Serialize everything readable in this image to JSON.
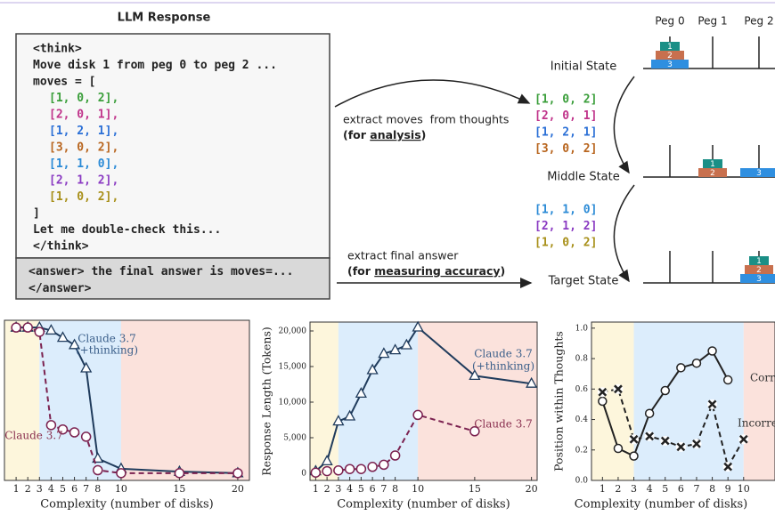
{
  "diagram": {
    "title": "LLM Response",
    "think_lines": [
      {
        "text": "<think>",
        "bold": true
      },
      {
        "text": "Move disk 1 from peg 0 to peg 2 ..."
      },
      {
        "text": "moves = ["
      },
      {
        "text": "[1, 0, 2],",
        "indent": 1,
        "color": "#3a9e3a"
      },
      {
        "text": "[2, 0, 1],",
        "indent": 1,
        "color": "#c0338a"
      },
      {
        "text": "[1, 2, 1],",
        "indent": 1,
        "color": "#2a6fd6"
      },
      {
        "text": "[3, 0, 2],",
        "indent": 1,
        "color": "#b8651e"
      },
      {
        "text": "[1, 1, 0],",
        "indent": 1,
        "color": "#2a8ad6"
      },
      {
        "text": "[2, 1, 2],",
        "indent": 1,
        "color": "#8a3ac2"
      },
      {
        "text": "[1, 0, 2],",
        "indent": 1,
        "color": "#a8901a"
      },
      {
        "text": "]"
      },
      {
        "text": "Let me double-check this..."
      },
      {
        "text": "</think>",
        "bold": true
      }
    ],
    "answer_lines": [
      {
        "tag": "<answer>",
        "text": " the final answer is moves=..."
      },
      {
        "tag": "</answer>"
      }
    ],
    "arrows": [
      {
        "line1": "extract moves  from thoughts",
        "pre": "(for ",
        "emph": "analysis",
        "post": ")"
      },
      {
        "line1": "extract final answer",
        "pre": "(for ",
        "emph": "measuring accuracy",
        "post": ")"
      }
    ],
    "peg_names": [
      "Peg 0",
      "Peg 1",
      "Peg 2"
    ],
    "disk_colors": {
      "1": "#1a8f86",
      "2": "#c8704e",
      "3": "#2f8fe0"
    },
    "states": [
      {
        "name": "Initial State",
        "pegs": [
          [
            "3",
            "2",
            "1"
          ],
          [],
          []
        ]
      },
      {
        "name": "Middle State",
        "pegs": [
          [],
          [
            "2",
            "1"
          ],
          [
            "3"
          ]
        ]
      },
      {
        "name": "Target State",
        "pegs": [
          [],
          [],
          [
            "3",
            "2",
            "1"
          ]
        ]
      }
    ],
    "move_groups": [
      [
        {
          "text": "[1, 0, 2]",
          "color": "#3a9e3a"
        },
        {
          "text": "[2, 0, 1]",
          "color": "#c0338a"
        },
        {
          "text": "[1, 2, 1]",
          "color": "#2a6fd6"
        },
        {
          "text": "[3, 0, 2]",
          "color": "#b8651e"
        }
      ],
      [
        {
          "text": "[1, 1, 0]",
          "color": "#2a8ad6"
        },
        {
          "text": "[2, 1, 2]",
          "color": "#8a3ac2"
        },
        {
          "text": "[1, 0, 2]",
          "color": "#a8901a"
        }
      ]
    ]
  },
  "chart_data": [
    {
      "type": "line",
      "xlabel": "Complexity (number of disks)",
      "xlim": [
        0,
        21
      ],
      "xticks": [
        1,
        2,
        3,
        4,
        5,
        6,
        7,
        8,
        10,
        15,
        20
      ],
      "ylim": [
        -5,
        105
      ],
      "regions": [
        {
          "from": 0,
          "to": 3,
          "color": "#fdf6dc"
        },
        {
          "from": 3,
          "to": 10,
          "color": "#dcedfc"
        },
        {
          "from": 10,
          "to": 21,
          "color": "#fbe2dc"
        }
      ],
      "series": [
        {
          "label": [
            "Claude 3.7",
            "(+thinking)"
          ],
          "color": "#1f3b5c",
          "marker": "triangle",
          "dash": false,
          "x": [
            1,
            2,
            3,
            4,
            5,
            6,
            7,
            8,
            10,
            15,
            20
          ],
          "values": [
            100,
            100,
            100,
            98,
            93,
            88,
            72,
            10,
            3,
            1,
            0
          ]
        },
        {
          "label": [
            "Claude 3.7"
          ],
          "color": "#7b2250",
          "marker": "circle",
          "dash": true,
          "x": [
            1,
            2,
            3,
            4,
            5,
            6,
            7,
            8,
            10,
            15,
            20
          ],
          "values": [
            100,
            100,
            97,
            33,
            30,
            28,
            25,
            2,
            0,
            0,
            0
          ]
        }
      ]
    },
    {
      "type": "line",
      "xlabel": "Complexity (number of disks)",
      "ylabel": "Response Length (Tokens)",
      "xlim": [
        0.5,
        20.5
      ],
      "xticks": [
        1,
        2,
        3,
        4,
        5,
        6,
        7,
        8,
        10,
        15,
        20
      ],
      "ylim": [
        -1000,
        21250
      ],
      "yticks": [
        0,
        {
          "value": 5000,
          "label": "5,000"
        },
        {
          "value": 10000,
          "label": "10,000"
        },
        {
          "value": 15000,
          "label": "15,000"
        },
        {
          "value": 20000,
          "label": "20,000"
        }
      ],
      "regions": [
        {
          "from": 0.5,
          "to": 3,
          "color": "#fdf6dc"
        },
        {
          "from": 3,
          "to": 10,
          "color": "#dcedfc"
        },
        {
          "from": 10,
          "to": 20.5,
          "color": "#fbe2dc"
        }
      ],
      "series": [
        {
          "label": [
            "Claude 3.7",
            "(+thinking)"
          ],
          "color": "#1f3b5c",
          "marker": "triangle",
          "dash": false,
          "x": [
            1,
            2,
            3,
            4,
            5,
            6,
            7,
            8,
            9,
            10,
            15,
            20
          ],
          "values": [
            300,
            1700,
            7300,
            8000,
            11200,
            14500,
            16800,
            17300,
            18000,
            20500,
            13700,
            12600
          ]
        },
        {
          "label": [
            "Claude 3.7"
          ],
          "color": "#7b2250",
          "marker": "circle",
          "dash": true,
          "x": [
            1,
            2,
            3,
            4,
            5,
            6,
            7,
            8,
            10,
            15
          ],
          "values": [
            100,
            300,
            400,
            600,
            600,
            900,
            1200,
            2500,
            8200,
            5900
          ]
        }
      ]
    },
    {
      "type": "line",
      "xlabel": "Complexity (number of disks)",
      "ylabel": "Position within Thoughts",
      "xlim": [
        0.3,
        12
      ],
      "xticks": [
        1,
        2,
        3,
        4,
        5,
        6,
        7,
        8,
        9,
        10
      ],
      "ylim": [
        0,
        1.04
      ],
      "yticks": [
        {
          "value": 0,
          "label": "0.0"
        },
        {
          "value": 0.2,
          "label": "0.2"
        },
        {
          "value": 0.4,
          "label": "0.4"
        },
        {
          "value": 0.6,
          "label": "0.6"
        },
        {
          "value": 0.8,
          "label": "0.8"
        },
        {
          "value": 1,
          "label": "1.0"
        }
      ],
      "regions": [
        {
          "from": 0.3,
          "to": 3,
          "color": "#fdf6dc"
        },
        {
          "from": 3,
          "to": 10,
          "color": "#dcedfc"
        },
        {
          "from": 10,
          "to": 12,
          "color": "#fbe2dc"
        }
      ],
      "series": [
        {
          "label": [
            "Correct"
          ],
          "color": "#222222",
          "marker": "circle",
          "dash": false,
          "x": [
            1,
            2,
            3,
            4,
            5,
            6,
            7,
            8,
            9
          ],
          "values": [
            0.52,
            0.21,
            0.16,
            0.44,
            0.59,
            0.74,
            0.77,
            0.85,
            0.66
          ]
        },
        {
          "label": [
            "Incorrect"
          ],
          "color": "#222222",
          "marker": "x",
          "dash": true,
          "x": [
            1,
            2,
            3,
            4,
            5,
            6,
            7,
            8,
            9,
            10
          ],
          "values": [
            0.58,
            0.6,
            0.27,
            0.29,
            0.26,
            0.22,
            0.24,
            0.5,
            0.09,
            0.27
          ]
        }
      ]
    }
  ]
}
